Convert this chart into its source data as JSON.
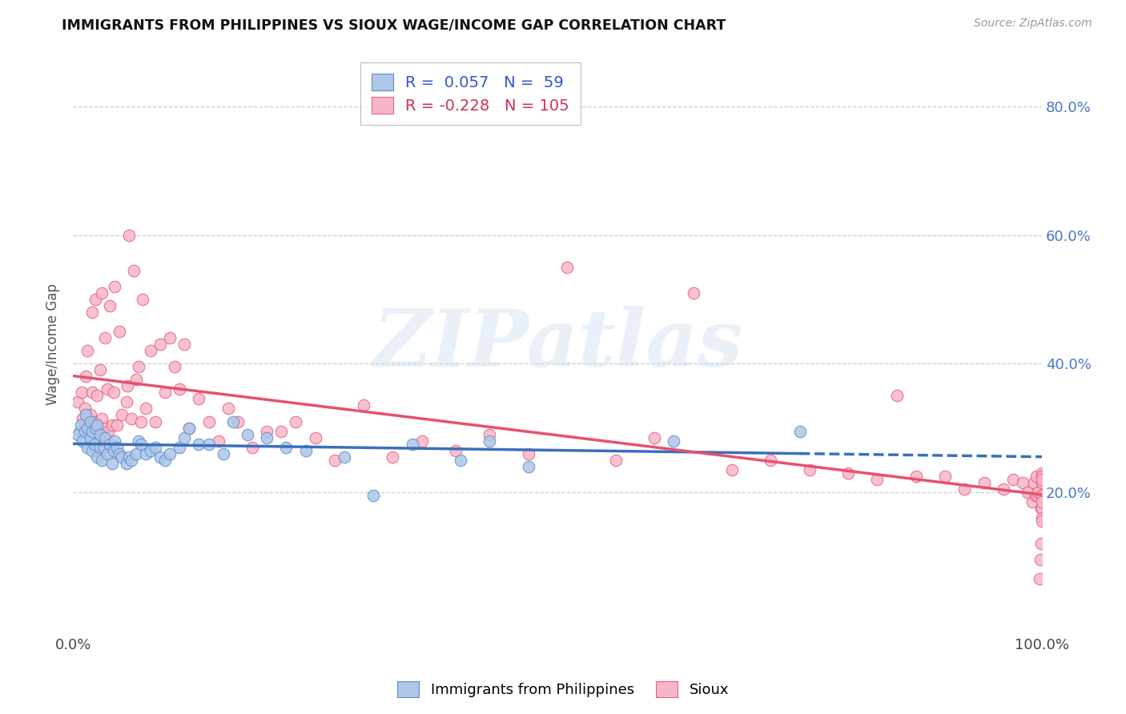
{
  "title": "IMMIGRANTS FROM PHILIPPINES VS SIOUX WAGE/INCOME GAP CORRELATION CHART",
  "source": "Source: ZipAtlas.com",
  "ylabel": "Wage/Income Gap",
  "blue_R": 0.057,
  "blue_N": 59,
  "pink_R": -0.228,
  "pink_N": 105,
  "blue_color": "#aec6e8",
  "pink_color": "#f7b6c8",
  "blue_edge_color": "#5b8fc9",
  "pink_edge_color": "#e8607a",
  "blue_line_color": "#3a6fbe",
  "pink_line_color": "#e85070",
  "legend_label_blue": "Immigrants from Philippines",
  "legend_label_pink": "Sioux",
  "watermark": "ZIPatlas",
  "background_color": "#ffffff",
  "xlim": [
    0.0,
    1.0
  ],
  "ylim": [
    -0.02,
    0.88
  ],
  "ytick_vals": [
    0.2,
    0.4,
    0.6,
    0.8
  ],
  "ytick_labels": [
    "20.0%",
    "40.0%",
    "60.0%",
    "80.0%"
  ],
  "blue_scatter_x": [
    0.005,
    0.008,
    0.01,
    0.012,
    0.013,
    0.015,
    0.015,
    0.018,
    0.018,
    0.02,
    0.02,
    0.022,
    0.023,
    0.025,
    0.025,
    0.028,
    0.028,
    0.03,
    0.032,
    0.033,
    0.035,
    0.038,
    0.04,
    0.042,
    0.043,
    0.045,
    0.048,
    0.05,
    0.055,
    0.058,
    0.06,
    0.065,
    0.068,
    0.07,
    0.075,
    0.08,
    0.085,
    0.09,
    0.095,
    0.1,
    0.11,
    0.115,
    0.12,
    0.13,
    0.14,
    0.155,
    0.165,
    0.18,
    0.2,
    0.22,
    0.24,
    0.28,
    0.31,
    0.35,
    0.4,
    0.43,
    0.47,
    0.62,
    0.75
  ],
  "blue_scatter_y": [
    0.29,
    0.305,
    0.28,
    0.295,
    0.32,
    0.27,
    0.3,
    0.285,
    0.31,
    0.265,
    0.295,
    0.275,
    0.3,
    0.255,
    0.305,
    0.27,
    0.29,
    0.25,
    0.27,
    0.285,
    0.26,
    0.275,
    0.245,
    0.265,
    0.28,
    0.27,
    0.26,
    0.255,
    0.245,
    0.255,
    0.25,
    0.26,
    0.28,
    0.275,
    0.26,
    0.265,
    0.27,
    0.255,
    0.25,
    0.26,
    0.27,
    0.285,
    0.3,
    0.275,
    0.275,
    0.26,
    0.31,
    0.29,
    0.285,
    0.27,
    0.265,
    0.255,
    0.195,
    0.275,
    0.25,
    0.28,
    0.24,
    0.28,
    0.295
  ],
  "pink_scatter_x": [
    0.005,
    0.007,
    0.009,
    0.01,
    0.012,
    0.013,
    0.015,
    0.016,
    0.018,
    0.02,
    0.02,
    0.022,
    0.023,
    0.025,
    0.026,
    0.028,
    0.03,
    0.03,
    0.032,
    0.033,
    0.035,
    0.036,
    0.038,
    0.04,
    0.042,
    0.043,
    0.045,
    0.048,
    0.05,
    0.055,
    0.056,
    0.058,
    0.06,
    0.063,
    0.065,
    0.068,
    0.07,
    0.072,
    0.075,
    0.08,
    0.085,
    0.09,
    0.095,
    0.1,
    0.105,
    0.11,
    0.115,
    0.12,
    0.13,
    0.14,
    0.15,
    0.16,
    0.17,
    0.185,
    0.2,
    0.215,
    0.23,
    0.25,
    0.27,
    0.3,
    0.33,
    0.36,
    0.395,
    0.43,
    0.47,
    0.51,
    0.56,
    0.6,
    0.64,
    0.68,
    0.72,
    0.76,
    0.8,
    0.83,
    0.85,
    0.87,
    0.9,
    0.92,
    0.94,
    0.96,
    0.97,
    0.98,
    0.985,
    0.99,
    0.992,
    0.993,
    0.994,
    0.995,
    0.996,
    0.997,
    0.998,
    0.999,
    0.999,
    1.0,
    1.0,
    1.0,
    1.0,
    1.0,
    1.0,
    1.0,
    1.0,
    1.0,
    1.0,
    1.0,
    1.0
  ],
  "pink_scatter_y": [
    0.34,
    0.295,
    0.355,
    0.315,
    0.33,
    0.38,
    0.42,
    0.295,
    0.32,
    0.355,
    0.48,
    0.31,
    0.5,
    0.35,
    0.285,
    0.39,
    0.315,
    0.51,
    0.3,
    0.44,
    0.36,
    0.295,
    0.49,
    0.305,
    0.355,
    0.52,
    0.305,
    0.45,
    0.32,
    0.34,
    0.365,
    0.6,
    0.315,
    0.545,
    0.375,
    0.395,
    0.31,
    0.5,
    0.33,
    0.42,
    0.31,
    0.43,
    0.355,
    0.44,
    0.395,
    0.36,
    0.43,
    0.3,
    0.345,
    0.31,
    0.28,
    0.33,
    0.31,
    0.27,
    0.295,
    0.295,
    0.31,
    0.285,
    0.25,
    0.335,
    0.255,
    0.28,
    0.265,
    0.29,
    0.26,
    0.55,
    0.25,
    0.285,
    0.51,
    0.235,
    0.25,
    0.235,
    0.23,
    0.22,
    0.35,
    0.225,
    0.225,
    0.205,
    0.215,
    0.205,
    0.22,
    0.215,
    0.2,
    0.185,
    0.215,
    0.195,
    0.225,
    0.195,
    0.2,
    0.065,
    0.095,
    0.12,
    0.175,
    0.195,
    0.23,
    0.175,
    0.215,
    0.16,
    0.195,
    0.195,
    0.225,
    0.155,
    0.185,
    0.215,
    0.22
  ]
}
